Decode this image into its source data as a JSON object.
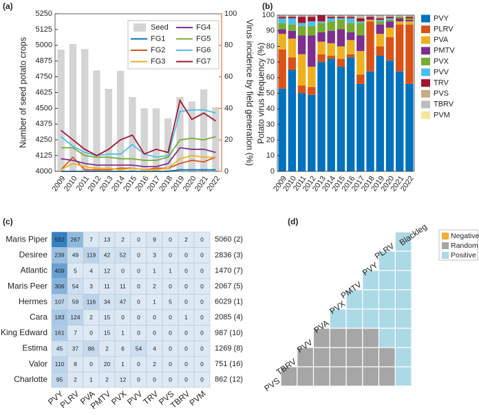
{
  "chart_data": [
    {
      "panel": "(a)",
      "type": "bar_line",
      "categories": [
        "2009",
        "2010",
        "2011",
        "2012",
        "2013",
        "2014",
        "2015",
        "2016",
        "2017",
        "2018",
        "2019",
        "2020",
        "2021",
        "2022"
      ],
      "ylabel": "Number of seed potato crops",
      "y2label": "Virus incidence by field generation (%)",
      "ylim": [
        4000,
        5250
      ],
      "yticks": [
        4000,
        4125,
        4250,
        4375,
        4500,
        4625,
        4750,
        4875,
        5000,
        5125,
        5250
      ],
      "y2lim": [
        0,
        100
      ],
      "y2ticks": [
        0,
        20,
        40,
        60,
        80,
        100
      ],
      "y2color": "#d95319",
      "series": [
        {
          "name": "Seed",
          "type": "bar",
          "color": "#d4d4d4",
          "values": [
            4966,
            5010,
            4970,
            4800,
            4655,
            4797,
            4590,
            4500,
            4500,
            4420,
            4590,
            4555,
            4650,
            4510
          ]
        },
        {
          "name": "FG1",
          "type": "line",
          "axis": "y2",
          "color": "#0072bd",
          "values": [
            0,
            0,
            0,
            0,
            0,
            0,
            0,
            0,
            0,
            0,
            1,
            1,
            1,
            1
          ]
        },
        {
          "name": "FG2",
          "type": "line",
          "axis": "y2",
          "color": "#d95319",
          "values": [
            1,
            9,
            1,
            1,
            1,
            2,
            2,
            1,
            2,
            2,
            5,
            7,
            6,
            9
          ]
        },
        {
          "name": "FG3",
          "type": "line",
          "axis": "y2",
          "color": "#edb120",
          "values": [
            1,
            5,
            3,
            2,
            2,
            1,
            2,
            1,
            1,
            2,
            8,
            10,
            9,
            9
          ]
        },
        {
          "name": "FG4",
          "type": "line",
          "axis": "y2",
          "color": "#7e2f8e",
          "values": [
            8,
            7,
            5,
            4,
            4,
            4,
            4,
            3,
            3,
            5,
            15,
            14,
            14,
            12
          ]
        },
        {
          "name": "FG5",
          "type": "line",
          "axis": "y2",
          "color": "#77ac30",
          "values": [
            15,
            15,
            10,
            9,
            9,
            8,
            8,
            7,
            7,
            9,
            20,
            21,
            20,
            22
          ]
        },
        {
          "name": "FG6",
          "type": "line",
          "axis": "y2",
          "color": "#4dbeee",
          "values": [
            22,
            16,
            12,
            10,
            11,
            11,
            17,
            11,
            9,
            10,
            38,
            39,
            39,
            37
          ]
        },
        {
          "name": "FG7",
          "type": "line",
          "axis": "y2",
          "color": "#a2142f",
          "values": [
            26,
            20,
            14,
            10,
            14,
            20,
            23,
            11,
            14,
            12,
            45,
            33,
            37,
            32
          ]
        }
      ]
    },
    {
      "panel": "(b)",
      "type": "stacked_bar",
      "categories": [
        "2009",
        "2010",
        "2011",
        "2012",
        "2013",
        "2014",
        "2015",
        "2016",
        "2017",
        "2018",
        "2019",
        "2020",
        "2021",
        "2022"
      ],
      "ylabel": "Potato virus frequency (%)",
      "ylim": [
        0,
        100
      ],
      "yticks": [
        0,
        10,
        20,
        30,
        40,
        50,
        60,
        70,
        80,
        90,
        100
      ],
      "series": [
        {
          "name": "PVY",
          "color": "#0072bd",
          "values": [
            53,
            65,
            50,
            49,
            70,
            72,
            67,
            73,
            56,
            64,
            74,
            71,
            64,
            56
          ]
        },
        {
          "name": "PLRV",
          "color": "#d95319",
          "values": [
            25,
            8,
            5,
            5,
            5,
            2,
            5,
            2,
            6,
            32,
            6,
            15,
            30,
            38
          ]
        },
        {
          "name": "PVA",
          "color": "#edb120",
          "values": [
            10,
            12,
            20,
            13,
            8,
            8,
            8,
            9,
            15,
            1,
            8,
            6,
            2,
            2
          ]
        },
        {
          "name": "PMTV",
          "color": "#7e2f8e",
          "values": [
            3,
            5,
            12,
            20,
            6,
            8,
            11,
            5,
            10,
            1,
            6,
            4,
            2,
            1
          ]
        },
        {
          "name": "PVX",
          "color": "#77ac30",
          "values": [
            4,
            4,
            6,
            6,
            6,
            6,
            6,
            6,
            8,
            0,
            2,
            1,
            1,
            1
          ]
        },
        {
          "name": "PVV",
          "color": "#4dbeee",
          "values": [
            3,
            4,
            2,
            3,
            1,
            2,
            1,
            3,
            1,
            0,
            1,
            1,
            0,
            0
          ]
        },
        {
          "name": "TRV",
          "color": "#a2142f",
          "values": [
            1,
            1,
            4,
            3,
            4,
            1,
            1,
            1,
            2,
            1,
            1,
            1,
            0,
            1
          ]
        },
        {
          "name": "PVS",
          "color": "#c9ab86",
          "values": [
            0.5,
            0.5,
            0.5,
            0.5,
            0,
            0.5,
            0.5,
            0.5,
            1,
            0.5,
            1,
            0.5,
            0.5,
            0.5
          ]
        },
        {
          "name": "TBRV",
          "color": "#bdbdbd",
          "values": [
            0.5,
            0.5,
            0.5,
            0.5,
            0,
            0.5,
            0.5,
            0.5,
            1,
            0.5,
            1,
            0.5,
            0.5,
            0.5
          ]
        },
        {
          "name": "PVM",
          "color": "#f3e79b",
          "values": [
            0,
            0,
            0,
            0,
            0,
            0,
            0,
            0,
            0,
            0,
            0,
            0,
            0,
            0
          ]
        }
      ]
    },
    {
      "panel": "(c)",
      "type": "heatmap",
      "rows": [
        "Maris Piper",
        "Desiree",
        "Atlantic",
        "Maris Peer",
        "Hermes",
        "Cara",
        "King Edward",
        "Estima",
        "Valor",
        "Charlotte"
      ],
      "columns": [
        "PVY",
        "PLRV",
        "PVA",
        "PMTV",
        "PVX",
        "PVV",
        "TRV",
        "PVS",
        "TBRV",
        "PVM"
      ],
      "values": [
        [
          592,
          267,
          7,
          13,
          2,
          0,
          9,
          0,
          2,
          0
        ],
        [
          239,
          49,
          119,
          42,
          52,
          0,
          3,
          0,
          0,
          0
        ],
        [
          409,
          5,
          4,
          12,
          0,
          0,
          1,
          1,
          0,
          0
        ],
        [
          306,
          54,
          3,
          11,
          11,
          0,
          2,
          0,
          0,
          0
        ],
        [
          107,
          59,
          116,
          34,
          47,
          0,
          1,
          5,
          0,
          0
        ],
        [
          183,
          124,
          2,
          15,
          0,
          0,
          0,
          0,
          1,
          0
        ],
        [
          161,
          7,
          0,
          15,
          1,
          0,
          0,
          0,
          0,
          0
        ],
        [
          45,
          37,
          86,
          2,
          6,
          54,
          4,
          0,
          0,
          0
        ],
        [
          110,
          8,
          0,
          20,
          1,
          0,
          2,
          0,
          0,
          0
        ],
        [
          95,
          2,
          1,
          2,
          12,
          0,
          0,
          0,
          0,
          0
        ]
      ],
      "row_notes": [
        "5060 (2)",
        "2836 (3)",
        "1470 (7)",
        "2067 (5)",
        "6029 (1)",
        "2085 (4)",
        "987 (10)",
        "1269 (8)",
        "751 (16)",
        "862 (12)"
      ],
      "colormap": [
        "#dde9f4",
        "#3380c2"
      ]
    },
    {
      "panel": "(d)",
      "type": "triangle_matrix",
      "labels": [
        "Blackleg",
        "PLRV",
        "PVY",
        "PMTV",
        "PVX",
        "PVA",
        "PVV",
        "TBRV",
        "PVS"
      ],
      "matrix": [
        [
          "Positive"
        ],
        [
          "Positive",
          "Positive"
        ],
        [
          "Positive",
          "Positive",
          "Positive"
        ],
        [
          "Positive",
          "Positive",
          "Positive",
          "Positive"
        ],
        [
          "Positive",
          "Positive",
          "Positive",
          "Positive",
          "Positive"
        ],
        [
          "Random",
          "Random",
          "Random",
          "Random",
          "Positive",
          "Positive"
        ],
        [
          "Random",
          "Random",
          "Random",
          "Random",
          "Random",
          "Random",
          "Positive"
        ],
        [
          "Random",
          "Random",
          "Random",
          "Random",
          "Random",
          "Random",
          "Random",
          "Positive"
        ]
      ],
      "legend": [
        {
          "name": "Negative",
          "color": "#f2b134"
        },
        {
          "name": "Random",
          "color": "#a6a6a6"
        },
        {
          "name": "Positive",
          "color": "#abd9e6"
        }
      ]
    }
  ]
}
